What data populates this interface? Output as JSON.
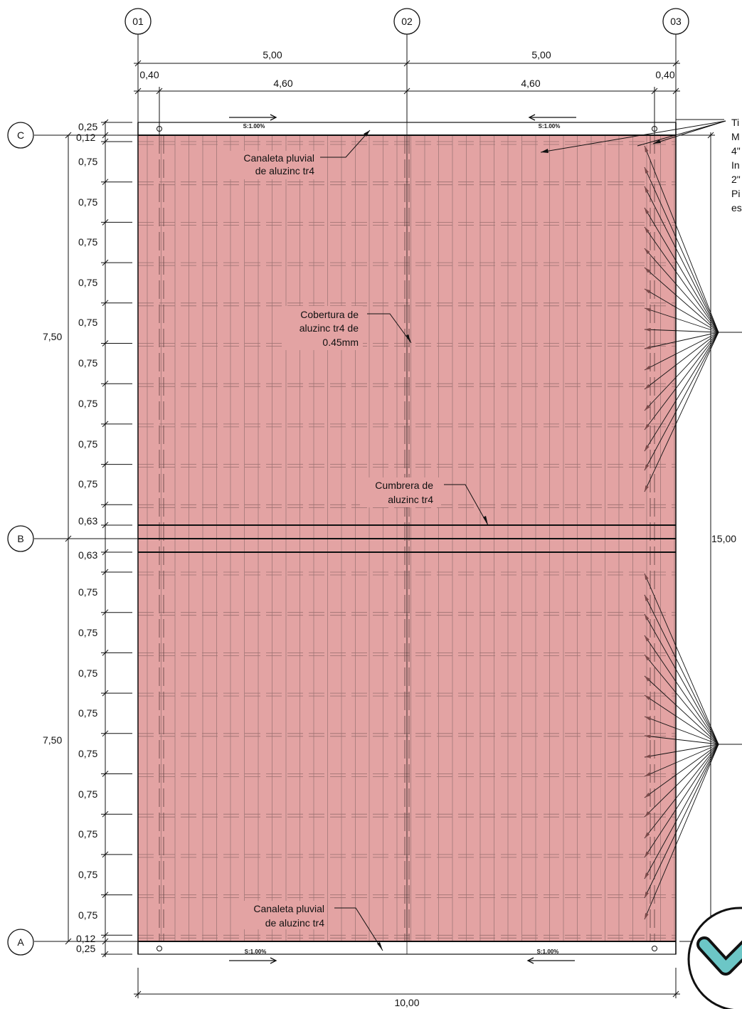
{
  "grid_axes": {
    "columns": [
      "01",
      "02",
      "03"
    ],
    "rows": [
      "C",
      "B",
      "A"
    ]
  },
  "top_dimensions": {
    "overall": [
      "5,00",
      "5,00"
    ],
    "detail": [
      "0,40",
      "4,60",
      "4,60",
      "0,40"
    ]
  },
  "bottom_dimension": "10,00",
  "left_dimensions": {
    "top_edge": [
      "0,25",
      "0,12"
    ],
    "upper_spacings": [
      "0,75",
      "0,75",
      "0,75",
      "0,75",
      "0,75",
      "0,75",
      "0,75",
      "0,75",
      "0,75"
    ],
    "upper_ridge": "0,63",
    "lower_ridge": "0,63",
    "lower_spacings": [
      "0,75",
      "0,75",
      "0,75",
      "0,75",
      "0,75",
      "0,75",
      "0,75",
      "0,75",
      "0,75"
    ],
    "bottom_edge": [
      "0,12",
      "0,25"
    ],
    "half_upper": "7,50",
    "half_lower": "7,50"
  },
  "right_dimension": "15,00",
  "slopes": [
    "S:1.00%",
    "S:1.00%",
    "S:1.00%",
    "S:1.00%"
  ],
  "labels": {
    "gutter_top": [
      "Canaleta pluvial",
      "de aluzinc tr4"
    ],
    "roofing": [
      "Cobertura de",
      "aluzinc tr4 de",
      "0.45mm"
    ],
    "ridge": [
      "Cumbrera de",
      "aluzinc tr4"
    ],
    "gutter_bottom": [
      "Canaleta pluvial",
      "de aluzinc tr4"
    ],
    "side_note": [
      "Ti",
      "M",
      "4\"",
      "In",
      "2\"",
      "Pi",
      "es"
    ]
  },
  "colors": {
    "roof_fill": "#e3a3a3",
    "line": "#111111",
    "leader": "#7a4a4a",
    "badge": "#6cc6c6"
  }
}
